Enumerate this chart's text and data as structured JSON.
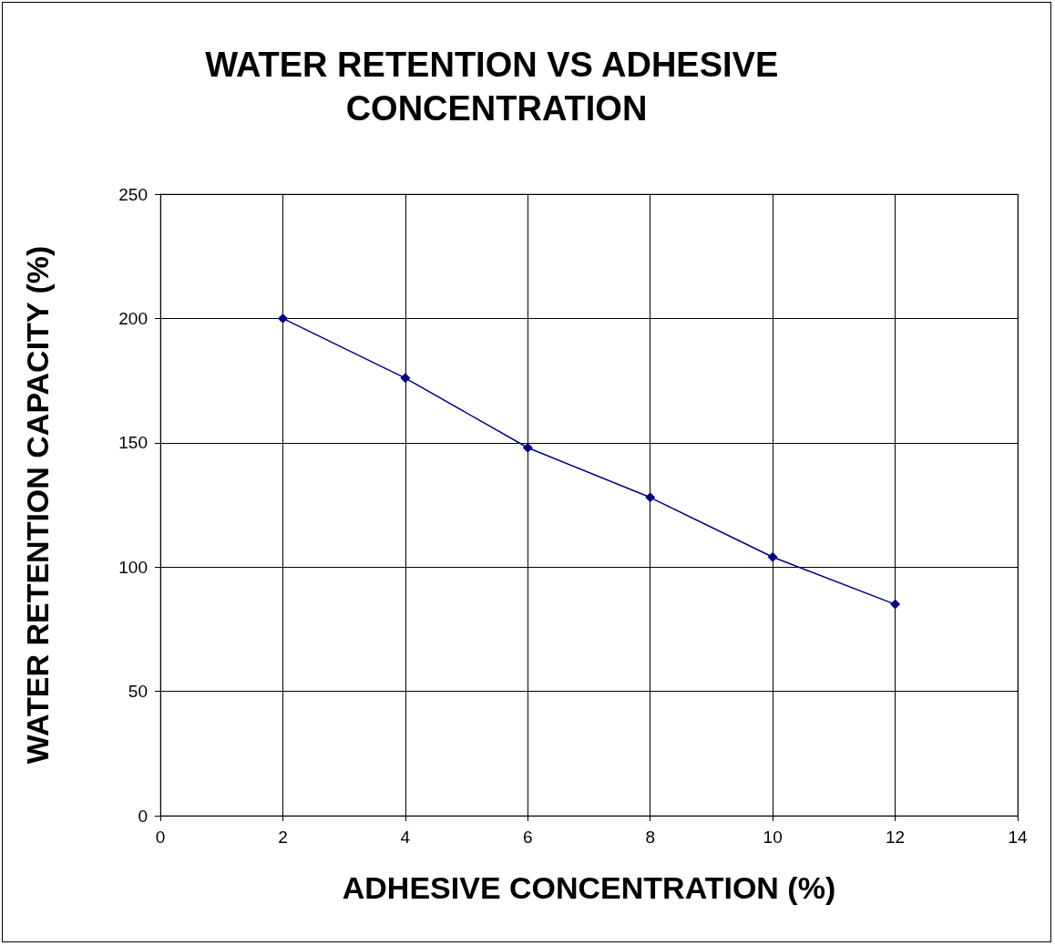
{
  "chart_data": {
    "type": "line",
    "title": "WATER RETENTION VS ADHESIVE CONCENTRATION",
    "xlabel": "ADHESIVE CONCENTRATION (%)",
    "ylabel": "WATER RETENTION CAPACITY (%)",
    "x": [
      2,
      4,
      6,
      8,
      10,
      12
    ],
    "series": [
      {
        "color": "#000080",
        "values": [
          200,
          176,
          148,
          128,
          104,
          85
        ]
      }
    ],
    "xlim": [
      0,
      14
    ],
    "xticks": [
      0,
      2,
      4,
      6,
      8,
      10,
      12,
      14
    ],
    "ylim": [
      0,
      250
    ],
    "yticks": [
      0,
      50,
      100,
      150,
      200,
      250
    ],
    "grid": true,
    "marker": "diamond",
    "line_style": "solid"
  }
}
